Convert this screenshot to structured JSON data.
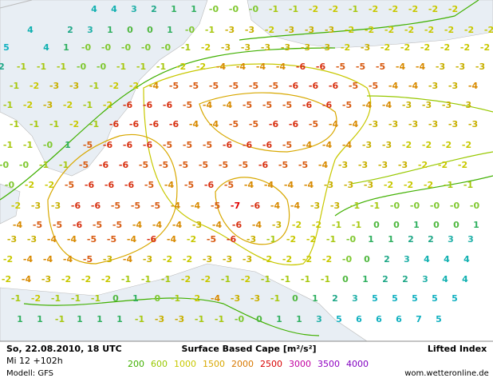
{
  "header": {
    "datetime": "So, 22.08.2010, 18 UTC",
    "run": "Mi 12 +102h",
    "model": "Modell: GFS",
    "title": "Surface Based Cape [m²/s²]",
    "index_title": "Lifted Index",
    "source": "wom.wetteronline.de"
  },
  "legend": {
    "values": [
      200,
      600,
      1000,
      1500,
      2000,
      2500,
      3000,
      3500,
      4000
    ],
    "colors": [
      "#40b000",
      "#98c800",
      "#c8c800",
      "#d8a800",
      "#d87800",
      "#d80000",
      "#c000a0",
      "#9000c0",
      "#8000c0"
    ]
  },
  "label_colors": {
    "-7": "#e00000",
    "-6": "#d83010",
    "-5": "#d85a10",
    "-4": "#d88a00",
    "-3": "#c8b000",
    "-2": "#c8c800",
    "-1": "#a8c810",
    "-0": "#80c830",
    "0": "#50b840",
    "1": "#30b060",
    "2": "#20a888",
    "3": "#20b0a8",
    "4": "#10b0b0",
    "5": "#10b0c0",
    "6": "#10b0c0",
    "7": "#10b0c0"
  },
  "map_labels": [
    [
      "4",
      "4",
      "3",
      "2",
      "1",
      "1",
      "-0",
      "-0",
      "-0",
      "-1",
      "-1",
      "-2",
      "-2",
      "-1",
      "-2",
      "-2",
      "-2",
      "-2",
      "-2"
    ],
    [
      "4",
      null,
      "2",
      "3",
      "1",
      "0",
      "0",
      "1",
      "-0",
      "-1",
      "-3",
      "-3",
      "-2",
      "-3",
      "-3",
      "-3",
      "-2",
      "-2",
      "-2",
      "-2",
      "-2",
      "-2",
      "-2",
      "-2"
    ],
    [
      "5",
      null,
      "4",
      "1",
      "-0",
      "-0",
      "-0",
      "-0",
      "-0",
      "-1",
      "-2",
      "-3",
      "-3",
      "-3",
      "-3",
      "-3",
      "-3",
      "-2",
      "-3",
      "-2",
      "-2",
      "-2",
      "-2",
      "-2",
      "-2"
    ],
    [
      "2",
      "-1",
      "-1",
      "-1",
      "-0",
      "-0",
      "-1",
      "-1",
      "-1",
      "-2",
      "-2",
      "-4",
      "-4",
      "-4",
      "-4",
      "-6",
      "-6",
      "-5",
      "-5",
      "-5",
      "-4",
      "-4",
      "-3",
      "-3",
      "-3"
    ],
    [
      "-1",
      "-2",
      "-3",
      "-3",
      "-1",
      "-2",
      "-2",
      "-4",
      "-5",
      "-5",
      "-5",
      "-5",
      "-5",
      "-5",
      "-6",
      "-6",
      "-6",
      "-5",
      "-5",
      "-4",
      "-4",
      "-3",
      "-3",
      "-4"
    ],
    [
      "-1",
      "-2",
      "-3",
      "-2",
      "-1",
      "-2",
      "-6",
      "-6",
      "-6",
      "-5",
      "-4",
      "-4",
      "-5",
      "-5",
      "-5",
      "-6",
      "-6",
      "-5",
      "-4",
      "-4",
      "-3",
      "-3",
      "-3",
      "-3"
    ],
    [
      "-1",
      "-1",
      "-1",
      "-2",
      "-1",
      "-6",
      "-6",
      "-6",
      "-6",
      "-4",
      "-4",
      "-5",
      "-5",
      "-6",
      "-6",
      "-5",
      "-4",
      "-4",
      "-3",
      "-3",
      "-3",
      "-3",
      "-3",
      "-3"
    ],
    [
      "-1",
      "-1",
      "-0",
      "1",
      "-5",
      "-6",
      "-6",
      "-6",
      "-5",
      "-5",
      "-5",
      "-6",
      "-6",
      "-6",
      "-5",
      "-4",
      "-4",
      "-4",
      "-3",
      "-3",
      "-2",
      "-2",
      "-2",
      "-2"
    ],
    [
      "-0",
      "-0",
      "-1",
      "-1",
      "-5",
      "-6",
      "-6",
      "-5",
      "-5",
      "-5",
      "-5",
      "-5",
      "-5",
      "-6",
      "-5",
      "-5",
      "-4",
      "-3",
      "-3",
      "-3",
      "-3",
      "-2",
      "-2",
      "-2"
    ],
    [
      "-0",
      "-2",
      "-2",
      "-5",
      "-6",
      "-6",
      "-6",
      "-5",
      "-4",
      "-5",
      "-6",
      "-5",
      "-4",
      "-4",
      "-4",
      "-4",
      "-3",
      "-3",
      "-3",
      "-2",
      "-2",
      "-2",
      "-1",
      "-1"
    ],
    [
      "-2",
      "-3",
      "-3",
      "-6",
      "-6",
      "-5",
      "-5",
      "-5",
      "-4",
      "-4",
      "-5",
      "-7",
      "-6",
      "-4",
      "-4",
      "-3",
      "-3",
      "-1",
      "-1",
      "-0",
      "-0",
      "-0",
      "-0",
      "-0"
    ],
    [
      "-4",
      "-5",
      "-5",
      "-6",
      "-5",
      "-5",
      "-4",
      "-4",
      "-4",
      "-3",
      "-4",
      "-6",
      "-4",
      "-3",
      "-2",
      "-2",
      "-1",
      "-1",
      "0",
      "0",
      "1",
      "0",
      "0",
      "1"
    ],
    [
      "-3",
      "-3",
      "-4",
      "-4",
      "-5",
      "-5",
      "-4",
      "-6",
      "-4",
      "-2",
      "-5",
      "-6",
      "-3",
      "-1",
      "-2",
      "-2",
      "-1",
      "-0",
      "1",
      "1",
      "2",
      "2",
      "3",
      "3"
    ],
    [
      "-2",
      "-4",
      "-4",
      "-4",
      "-5",
      "-3",
      "-4",
      "-3",
      "-2",
      "-2",
      "-3",
      "-3",
      "-3",
      "-2",
      "-2",
      "-2",
      "-2",
      "-0",
      "0",
      "2",
      "3",
      "4",
      "4",
      "4"
    ],
    [
      "-2",
      "-4",
      "-3",
      "-2",
      "-2",
      "-2",
      "-1",
      "-1",
      "-1",
      "-2",
      "-2",
      "-1",
      "-2",
      "-1",
      "-1",
      "-1",
      "-1",
      "0",
      "1",
      "2",
      "2",
      "3",
      "4",
      "4"
    ],
    [
      "-1",
      "-2",
      "-1",
      "-1",
      "-1",
      "0",
      "1",
      "-0",
      "-1",
      "-2",
      "-4",
      "-3",
      "-3",
      "-1",
      "0",
      "1",
      "2",
      "3",
      "5",
      "5",
      "5",
      "5",
      "5"
    ],
    [
      "1",
      "1",
      "-1",
      "1",
      "1",
      "1",
      "-1",
      "-3",
      "-3",
      "-1",
      "-1",
      "-0",
      "0",
      "1",
      "1",
      "3",
      "5",
      "6",
      "6",
      "6",
      "7",
      "5"
    ]
  ]
}
